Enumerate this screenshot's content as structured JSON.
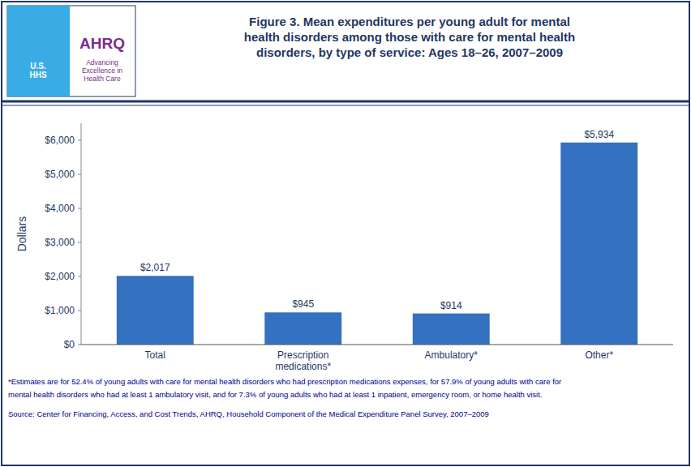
{
  "chart_data": {
    "type": "bar",
    "title": "Figure 3. Mean expenditures per young adult for mental\nhealth disorders among those with care for mental health\ndisorders, by type of service: Ages 18–26, 2007–2009",
    "categories": [
      "Total",
      "Prescription\nmedications*",
      "Ambulatory*",
      "Other*"
    ],
    "values": [
      2017,
      945,
      914,
      5934
    ],
    "value_labels": [
      "$2,017",
      "$945",
      "$914",
      "$5,934"
    ],
    "data_labels": true,
    "color": "#3471C1",
    "ylabel": "Dollars",
    "ylim": [
      0,
      6500
    ],
    "yticks": [
      {
        "value": 0,
        "label": "$0"
      },
      {
        "value": 1000,
        "label": "$1,000"
      },
      {
        "value": 2000,
        "label": "$2,000"
      },
      {
        "value": 3000,
        "label": "$3,000"
      },
      {
        "value": 4000,
        "label": "$4,000"
      },
      {
        "value": 5000,
        "label": "$5,000"
      },
      {
        "value": 6000,
        "label": "$6,000"
      }
    ],
    "grid": false,
    "annotations": [
      "U.S.\nHHS",
      "AHRQ",
      "Advancing\nExcellence in\nHealth Care",
      "*Estimates are for 52.4% of young adults with care for mental health disorders who had prescription medications expenses, for 57.9% of young adults with care for",
      "mental health disorders who had at least 1 ambulatory visit, and for 7.3% of young adults who had at least 1 inpatient, emergency room, or home health visit.",
      "Source: Center for Financing, Access, and Cost Trends, AHRQ, Household Component of the Medical Expenditure Panel Survey, 2007–2009"
    ]
  }
}
